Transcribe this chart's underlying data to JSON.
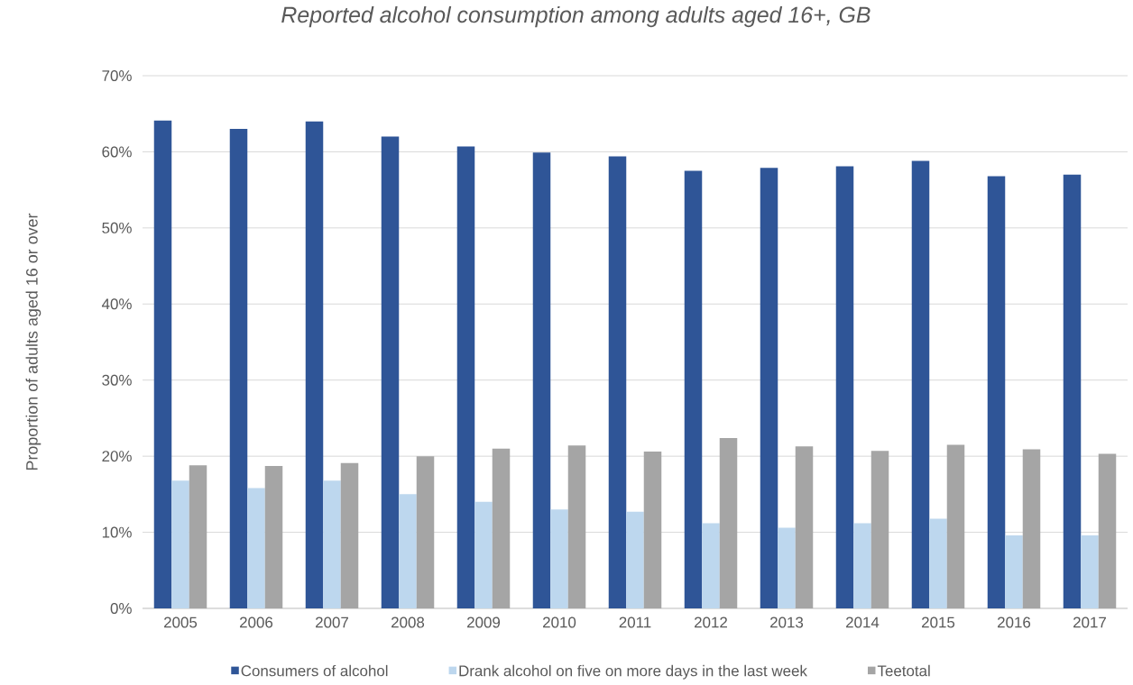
{
  "chart_data": {
    "type": "bar",
    "title": "Reported alcohol consumption among adults aged 16+, GB",
    "ylabel": "Proportion of adults aged 16 or over",
    "categories": [
      "2005",
      "2006",
      "2007",
      "2008",
      "2009",
      "2010",
      "2011",
      "2012",
      "2013",
      "2014",
      "2015",
      "2016",
      "2017"
    ],
    "series": [
      {
        "name": "Consumers of alcohol",
        "color": "#2f5597",
        "values": [
          64.1,
          63.0,
          64.0,
          62.0,
          60.7,
          59.9,
          59.4,
          57.5,
          57.9,
          58.1,
          58.8,
          56.8,
          57.0
        ]
      },
      {
        "name": "Drank alcohol on five on more days in the last week",
        "color": "#bdd7ee",
        "values": [
          16.8,
          15.8,
          16.8,
          15.0,
          14.0,
          13.0,
          12.7,
          11.2,
          10.6,
          11.2,
          11.8,
          9.6,
          9.6
        ]
      },
      {
        "name": "Teetotal",
        "color": "#a5a5a5",
        "values": [
          18.8,
          18.7,
          19.1,
          20.0,
          21.0,
          21.4,
          20.6,
          22.4,
          21.3,
          20.7,
          21.5,
          20.9,
          20.3
        ]
      }
    ],
    "ylim": [
      0,
      70
    ],
    "yticks": [
      {
        "value": 0,
        "label": "0%"
      },
      {
        "value": 10,
        "label": "10%"
      },
      {
        "value": 20,
        "label": "20%"
      },
      {
        "value": 30,
        "label": "30%"
      },
      {
        "value": 40,
        "label": "40%"
      },
      {
        "value": 50,
        "label": "50%"
      },
      {
        "value": 60,
        "label": "60%"
      },
      {
        "value": 70,
        "label": "70%"
      }
    ],
    "grid": "y",
    "legend": "bottom"
  }
}
